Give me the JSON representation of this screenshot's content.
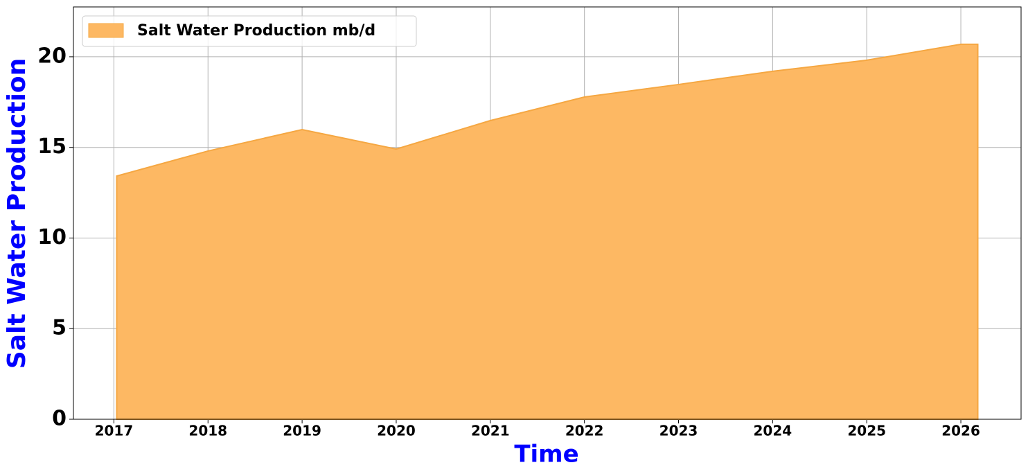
{
  "chart_data": {
    "type": "area",
    "x_label": "Time",
    "y_label": "Salt Water Production",
    "x": [
      2017.03,
      2018,
      2019,
      2020,
      2021,
      2022,
      2023,
      2024,
      2025,
      2026,
      2026.18
    ],
    "series": [
      {
        "name": "Salt Water Production mb/d",
        "color": "#fdb863",
        "edge_color": "#f5a742",
        "values": [
          13.42,
          14.8,
          15.98,
          14.91,
          16.48,
          17.78,
          18.47,
          19.2,
          19.81,
          20.69,
          20.69
        ]
      }
    ],
    "xlim": [
      2016.57,
      2026.64
    ],
    "xticks": [
      2017,
      2018,
      2019,
      2020,
      2021,
      2022,
      2023,
      2024,
      2025,
      2026
    ],
    "ylim": [
      0,
      22.75
    ],
    "yticks": [
      0,
      5,
      10,
      15,
      20
    ],
    "grid": true,
    "legend": "upper-left"
  }
}
